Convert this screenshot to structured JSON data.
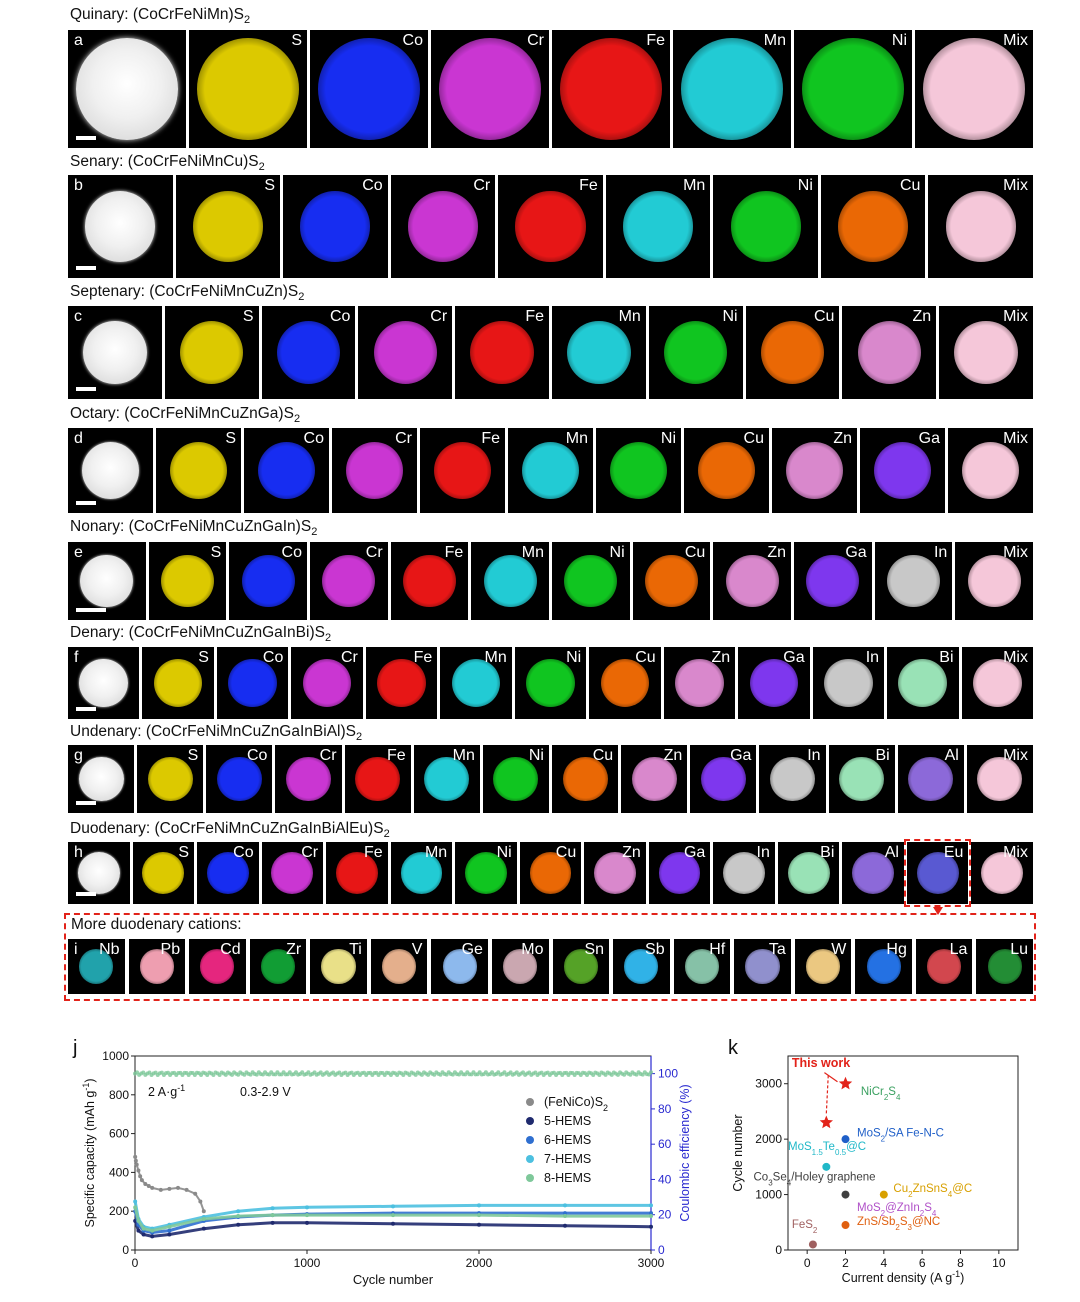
{
  "panels": [
    {
      "letter": "a",
      "title": "Quinary: (CoCrFeNiMn)S",
      "title_sub": "2",
      "elements": [
        "",
        "S",
        "Co",
        "Cr",
        "Fe",
        "Mn",
        "Ni",
        "Mix"
      ]
    },
    {
      "letter": "b",
      "title": "Senary: (CoCrFeNiMnCu)S",
      "title_sub": "2",
      "elements": [
        "",
        "S",
        "Co",
        "Cr",
        "Fe",
        "Mn",
        "Ni",
        "Cu",
        "Mix"
      ]
    },
    {
      "letter": "c",
      "title": "Septenary: (CoCrFeNiMnCuZn)S",
      "title_sub": "2",
      "elements": [
        "",
        "S",
        "Co",
        "Cr",
        "Fe",
        "Mn",
        "Ni",
        "Cu",
        "Zn",
        "Mix"
      ]
    },
    {
      "letter": "d",
      "title": "Octary: (CoCrFeNiMnCuZnGa)S",
      "title_sub": "2",
      "elements": [
        "",
        "S",
        "Co",
        "Cr",
        "Fe",
        "Mn",
        "Ni",
        "Cu",
        "Zn",
        "Ga",
        "Mix"
      ]
    },
    {
      "letter": "e",
      "title": "Nonary: (CoCrFeNiMnCuZnGaIn)S",
      "title_sub": "2",
      "elements": [
        "",
        "S",
        "Co",
        "Cr",
        "Fe",
        "Mn",
        "Ni",
        "Cu",
        "Zn",
        "Ga",
        "In",
        "Mix"
      ]
    },
    {
      "letter": "f",
      "title": "Denary: (CoCrFeNiMnCuZnGaInBi)S",
      "title_sub": "2",
      "elements": [
        "",
        "S",
        "Co",
        "Cr",
        "Fe",
        "Mn",
        "Ni",
        "Cu",
        "Zn",
        "Ga",
        "In",
        "Bi",
        "Mix"
      ]
    },
    {
      "letter": "g",
      "title": "Undenary: (CoCrFeNiMnCuZnGaInBiAl)S",
      "title_sub": "2",
      "elements": [
        "",
        "S",
        "Co",
        "Cr",
        "Fe",
        "Mn",
        "Ni",
        "Cu",
        "Zn",
        "Ga",
        "In",
        "Bi",
        "Al",
        "Mix"
      ]
    },
    {
      "letter": "h",
      "title": "Duodenary: (CoCrFeNiMnCuZnGaInBiAlEu)S",
      "title_sub": "2",
      "elements": [
        "",
        "S",
        "Co",
        "Cr",
        "Fe",
        "Mn",
        "Ni",
        "Cu",
        "Zn",
        "Ga",
        "In",
        "Bi",
        "Al",
        "Eu",
        "Mix"
      ]
    }
  ],
  "more": {
    "letter": "i",
    "title": "More duodenary cations:",
    "elements": [
      "Nb",
      "Pb",
      "Cd",
      "Zr",
      "Ti",
      "V",
      "Ge",
      "Mo",
      "Sn",
      "Sb",
      "Hf",
      "Ta",
      "W",
      "Hg",
      "La",
      "Lu"
    ]
  },
  "element_colors": {
    "S": "#d9c800",
    "Co": "#1a2ee0",
    "Cr": "#c03ac8",
    "Fe": "#d81a1a",
    "Mn": "#2ec8d0",
    "Ni": "#1cc02a",
    "Cu": "#e06a10",
    "Zn": "#d48ac8",
    "Ga": "#7a3ae0",
    "In": "#c8c8c8",
    "Bi": "#9ee0b8",
    "Al": "#8a6ad0",
    "Eu": "#5a5ac8",
    "Mix": "#f2c8d8",
    "": "#e8e8e8",
    "Nb": "#2aa0a8",
    "Pb": "#e8a0b0",
    "Cd": "#d82a7a",
    "Zr": "#1a9a3a",
    "Ti": "#e8e090",
    "V": "#e0b090",
    "Ge": "#90b8e8",
    "Mo": "#c8a8b0",
    "Sn": "#5aa030",
    "Sb": "#3ab0e0",
    "Hf": "#8ac0a8",
    "Ta": "#9090c8",
    "W": "#e8c888",
    "Hg": "#2a70d8",
    "La": "#c84a50",
    "Lu": "#2a8a3a"
  },
  "chart_j": {
    "letter": "j",
    "type": "scatter",
    "xlabel": "Cycle number",
    "ylabel_left": "Specific capacity (mAh g",
    "ylabel_left_sup": "-1",
    "ylabel_left_close": ")",
    "ylabel_right": "Coulombic efficiency (%)",
    "xlim": [
      0,
      3000
    ],
    "ylim_left": [
      0,
      1000
    ],
    "ylim_right": [
      0,
      110
    ],
    "x_ticks": [
      "0",
      "1000",
      "2000",
      "3000"
    ],
    "y_ticks_left": [
      "0",
      "200",
      "400",
      "600",
      "800",
      "1000"
    ],
    "y_ticks_right": [
      "0",
      "20",
      "40",
      "60",
      "80",
      "100"
    ],
    "annotation_rate": "2 A·g",
    "annotation_rate_sup": "-1",
    "annotation_voltage": "0.3-2.9 V",
    "series": [
      {
        "name": "(FeNiCo)S",
        "name_sub": "2",
        "color": "#8a8a8a",
        "x": [
          1,
          5,
          10,
          20,
          30,
          40,
          60,
          80,
          100,
          150,
          200,
          250,
          300,
          350,
          380,
          400
        ],
        "y": [
          480,
          460,
          440,
          410,
          380,
          360,
          340,
          330,
          320,
          310,
          315,
          320,
          310,
          290,
          250,
          200
        ]
      },
      {
        "name": "5-HEMS",
        "color": "#1f2a6e",
        "x": [
          1,
          20,
          50,
          100,
          200,
          400,
          600,
          800,
          1000,
          1500,
          2000,
          2500,
          3000
        ],
        "y": [
          150,
          100,
          80,
          70,
          80,
          110,
          130,
          140,
          140,
          135,
          130,
          125,
          120
        ]
      },
      {
        "name": "6-HEMS",
        "color": "#2f6fd0",
        "x": [
          1,
          20,
          50,
          100,
          200,
          400,
          600,
          800,
          1000,
          1500,
          2000,
          2500,
          3000
        ],
        "y": [
          200,
          130,
          100,
          90,
          100,
          150,
          170,
          180,
          185,
          190,
          190,
          190,
          190
        ]
      },
      {
        "name": "7-HEMS",
        "color": "#4cc0e0",
        "x": [
          1,
          20,
          50,
          100,
          200,
          400,
          600,
          800,
          1000,
          1500,
          2000,
          2500,
          3000
        ],
        "y": [
          250,
          160,
          120,
          110,
          130,
          170,
          200,
          215,
          220,
          225,
          230,
          230,
          230
        ]
      },
      {
        "name": "8-HEMS",
        "color": "#7ec89a",
        "x": [
          1,
          20,
          50,
          100,
          200,
          400,
          600,
          800,
          1000,
          1500,
          2000,
          2500,
          3000
        ],
        "y": [
          220,
          150,
          110,
          100,
          120,
          160,
          175,
          180,
          180,
          180,
          180,
          175,
          175
        ]
      }
    ],
    "ce_value": 100
  },
  "chart_k": {
    "letter": "k",
    "type": "scatter",
    "xlabel": "Current density (A g",
    "xlabel_sup": "-1",
    "xlabel_close": ")",
    "ylabel": "Cycle number",
    "xlim": [
      -1,
      11
    ],
    "ylim": [
      0,
      3500
    ],
    "x_ticks": [
      "0",
      "2",
      "4",
      "6",
      "8",
      "10"
    ],
    "y_ticks": [
      "0",
      "1000",
      "2000",
      "3000"
    ],
    "this_work_label": "This work",
    "this_work_points": [
      {
        "x": 2,
        "y": 3000
      },
      {
        "x": 1,
        "y": 2300
      }
    ],
    "points": [
      {
        "label": "NiCr",
        "sub": "2",
        "label2": "S",
        "sub2": "4",
        "x": 2,
        "y": 3000,
        "color": "#3aa060",
        "show_marker": false
      },
      {
        "label": "MoS",
        "sub": "2",
        "label2": "/SA Fe-N-C",
        "sub2": "",
        "x": 2,
        "y": 2000,
        "color": "#1f5fc8",
        "show_marker": true
      },
      {
        "label": "MoS",
        "sub": "1.5",
        "label2": "Te",
        "sub2": "0.5",
        "label3": "@C",
        "x": 1,
        "y": 1500,
        "color": "#20b8c8",
        "show_marker": true
      },
      {
        "label": "Co",
        "sub": "3",
        "label2": "Se",
        "sub2": "4",
        "label3": "/Holey graphene",
        "x": 2,
        "y": 1000,
        "color": "#404040",
        "show_marker": true
      },
      {
        "label": "Cu",
        "sub": "2",
        "label2": "ZnSnS",
        "sub2": "4",
        "label3": "@C",
        "x": 4,
        "y": 1000,
        "color": "#d8a000",
        "show_marker": true
      },
      {
        "label": "MoS",
        "sub": "2",
        "label2": "@ZnIn",
        "sub2": "2",
        "label3": "S",
        "sub3": "4",
        "x": 4,
        "y": 800,
        "color": "#b050c8",
        "show_marker": false
      },
      {
        "label": "ZnS/Sb",
        "sub": "2",
        "label2": "S",
        "sub2": "3",
        "label3": "@NC",
        "x": 2,
        "y": 450,
        "color": "#e06010",
        "show_marker": true
      },
      {
        "label": "FeS",
        "sub": "2",
        "label2": "",
        "sub2": "",
        "x": 0.3,
        "y": 100,
        "color": "#a06060",
        "show_marker": true
      }
    ]
  }
}
